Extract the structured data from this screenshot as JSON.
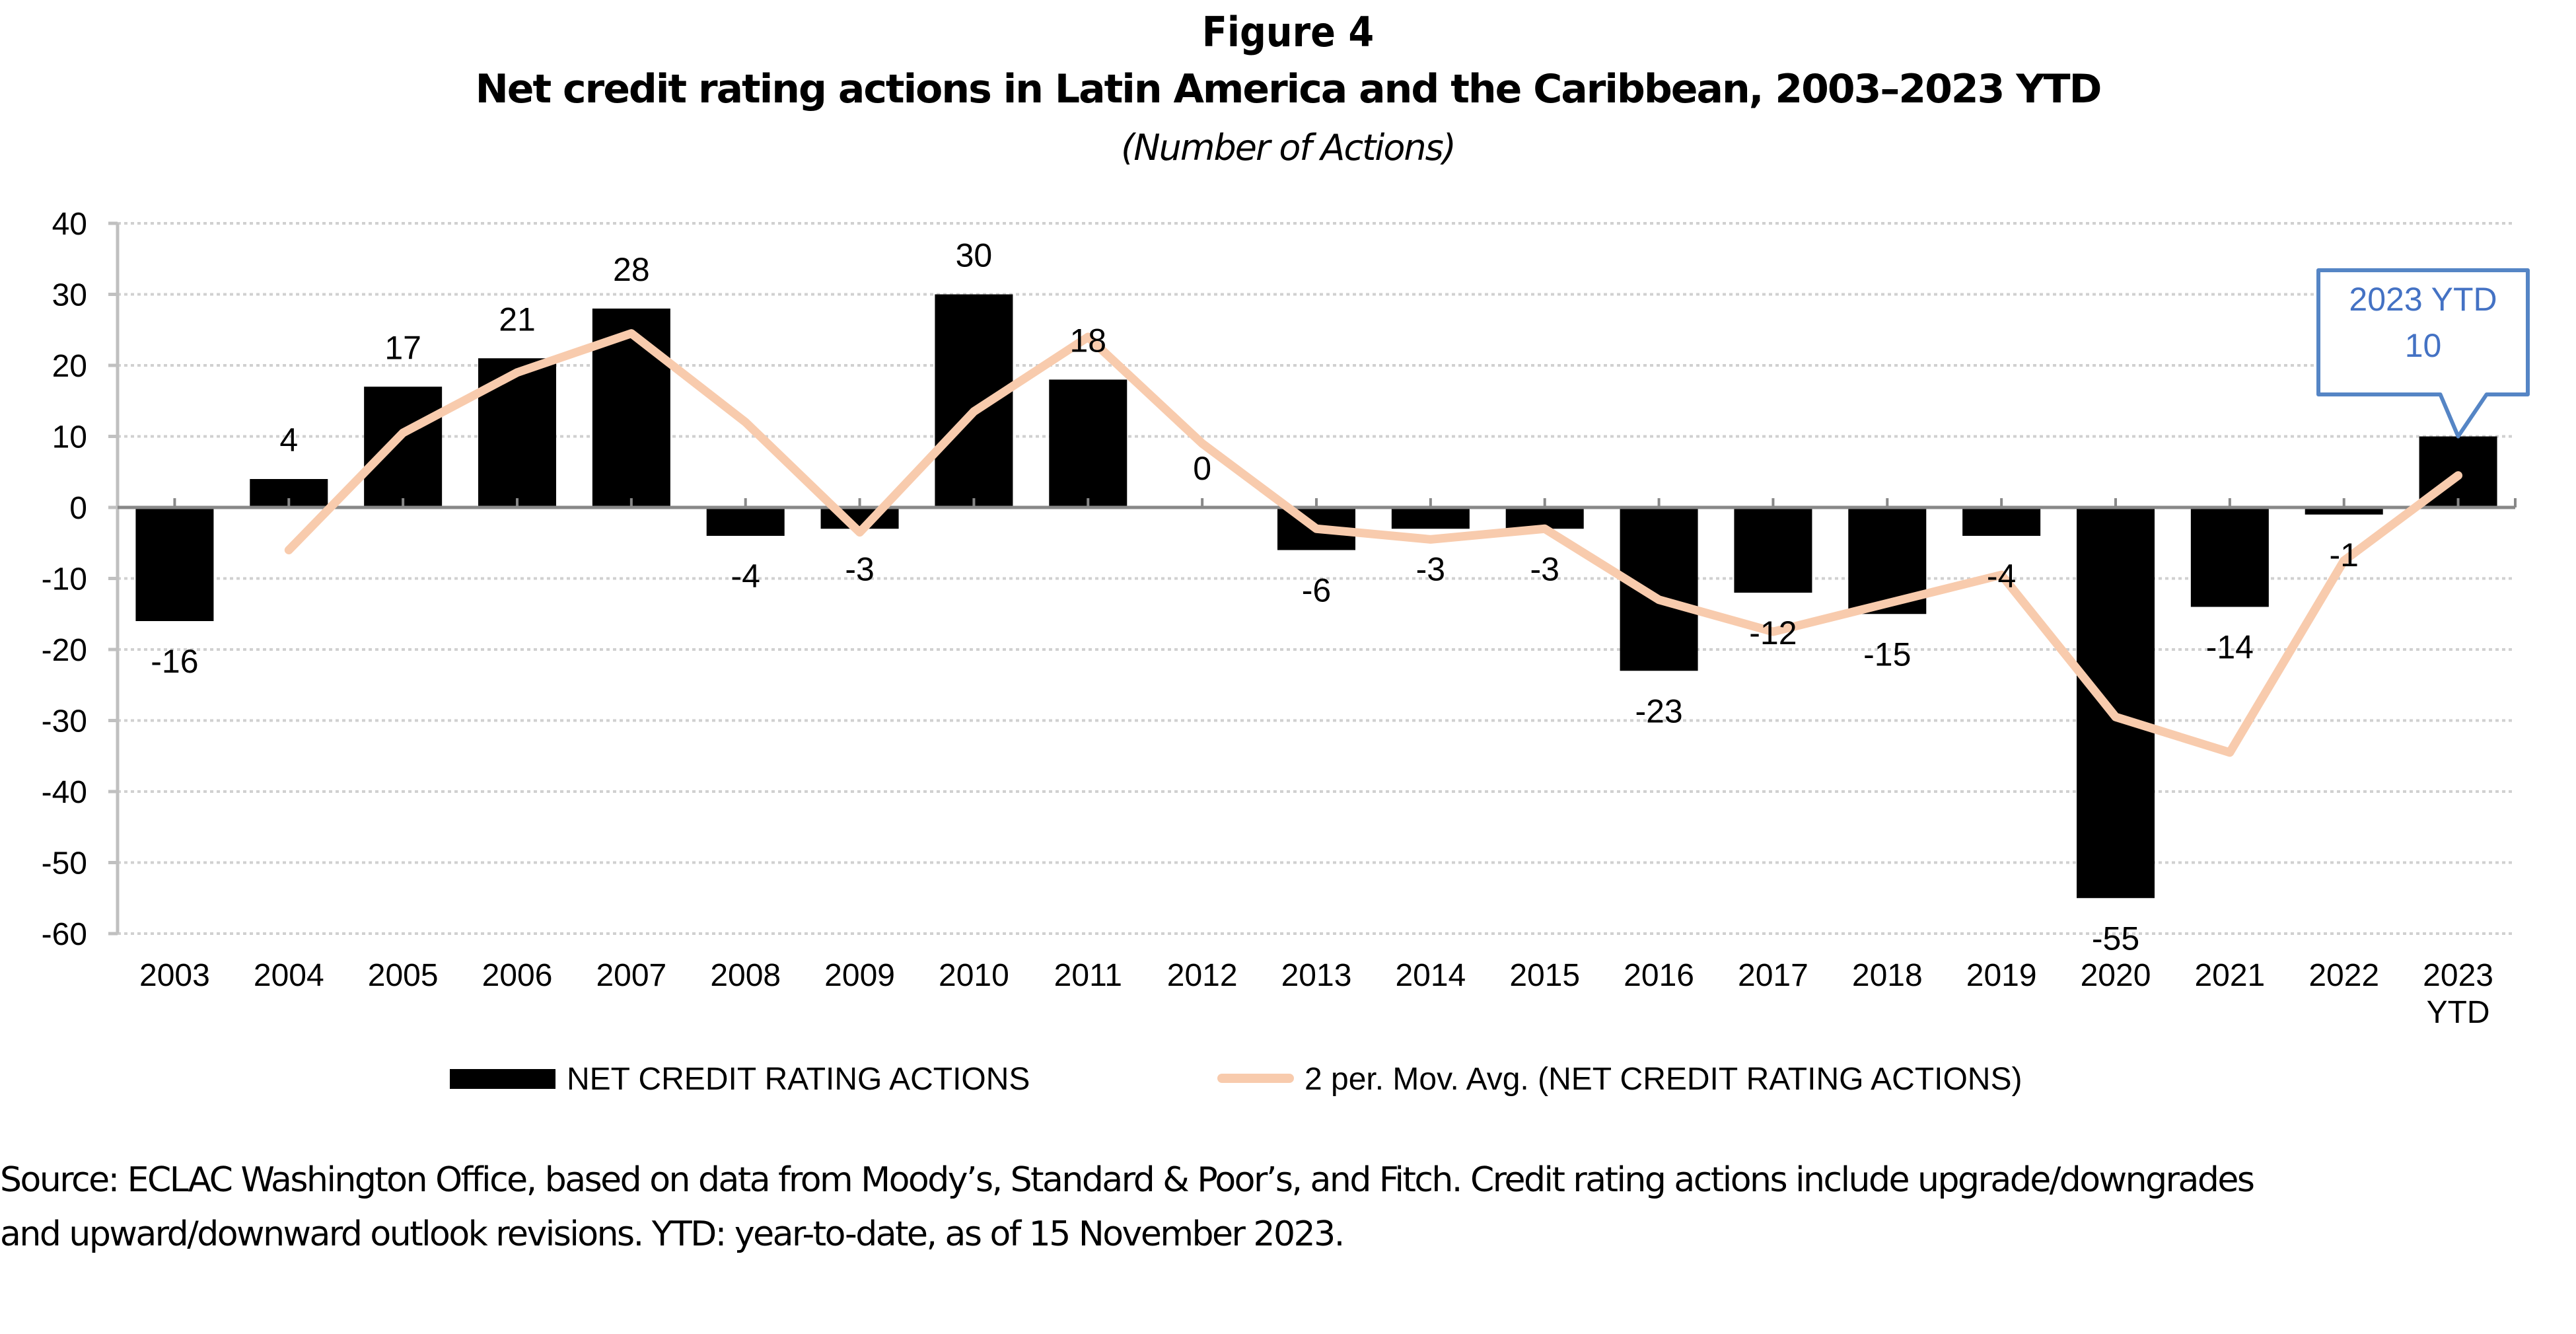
{
  "figure": {
    "number": "Figure 4",
    "title": "Net credit rating actions in Latin America and the Caribbean, 2003–2023 YTD",
    "subtitle": "(Number of Actions)"
  },
  "chart_data": {
    "type": "bar",
    "title": "Net credit rating actions in Latin America and the Caribbean, 2003–2023 YTD",
    "subtitle": "(Number of Actions)",
    "xlabel": "",
    "ylabel": "",
    "ylim": [
      -60,
      40
    ],
    "yticks": [
      40,
      30,
      20,
      10,
      0,
      -10,
      -20,
      -30,
      -40,
      -50,
      -60
    ],
    "grid": true,
    "legend_position": "bottom",
    "categories": [
      "2003",
      "2004",
      "2005",
      "2006",
      "2007",
      "2008",
      "2009",
      "2010",
      "2011",
      "2012",
      "2013",
      "2014",
      "2015",
      "2016",
      "2017",
      "2018",
      "2019",
      "2020",
      "2021",
      "2022",
      "2023 YTD"
    ],
    "series": [
      {
        "name": "NET CREDIT RATING ACTIONS",
        "kind": "bar",
        "color": "#000000",
        "values": [
          -16,
          4,
          17,
          21,
          28,
          -4,
          -3,
          30,
          18,
          0,
          -6,
          -3,
          -3,
          -23,
          -12,
          -15,
          -4,
          -55,
          -14,
          -1,
          10
        ],
        "data_labels": [
          "-16",
          "4",
          "17",
          "21",
          "28",
          "-4",
          "-3",
          "30",
          "18",
          "0",
          "-6",
          "-3",
          "-3",
          "-23",
          "-12",
          "-15",
          "-4",
          "-55",
          "-14",
          "-1",
          ""
        ]
      },
      {
        "name": "2 per. Mov. Avg. (NET CREDIT RATING ACTIONS)",
        "kind": "line",
        "color": "#F8CBAD",
        "values": [
          null,
          -6,
          10.5,
          19,
          24.5,
          12,
          -3.5,
          13.5,
          24,
          9,
          -3,
          -4.5,
          -3,
          -13,
          -17.5,
          -13.5,
          -9.5,
          -29.5,
          -34.5,
          -7.5,
          4.5
        ]
      }
    ],
    "annotations": [
      {
        "category": "2023 YTD",
        "lines": [
          "2023 YTD",
          "10"
        ],
        "color": "#4472C4",
        "border_color": "#5585C5"
      }
    ]
  },
  "source_note": {
    "line1": "Source:  ECLAC Washington Office, based on data from Moody’s, Standard & Poor’s, and Fitch. Credit rating actions include upgrade/downgrades",
    "line2": "and upward/downward outlook revisions. YTD: year-to-date, as of 15 November 2023."
  }
}
